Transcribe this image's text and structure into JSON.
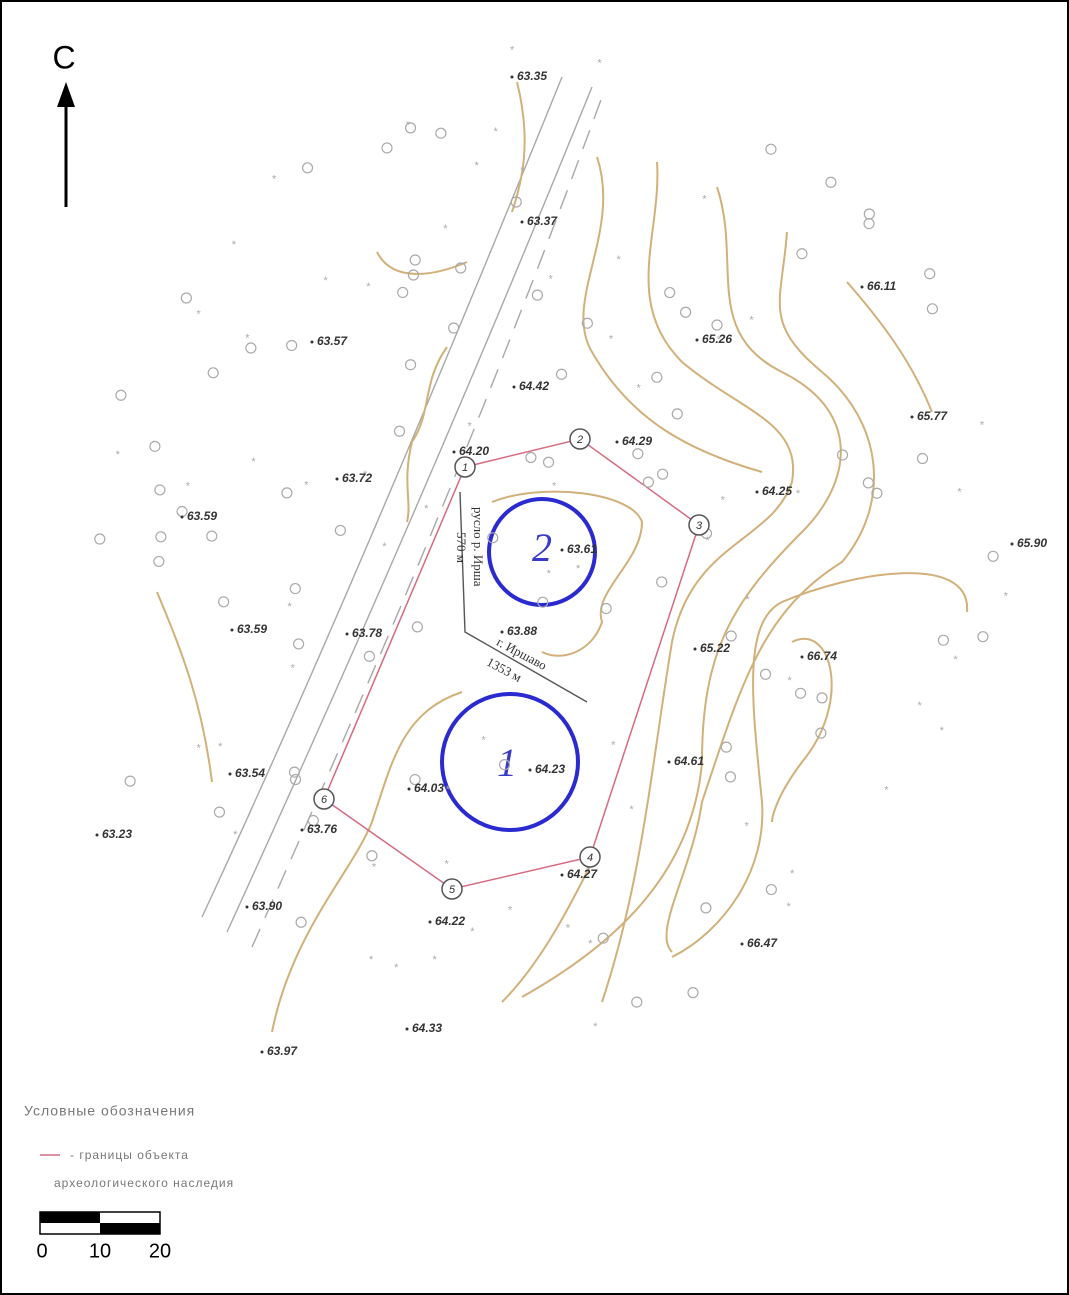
{
  "north_label": "С",
  "elevations": [
    "63.35",
    "63.37",
    "66.11",
    "63.57",
    "65.26",
    "64.42",
    "65.77",
    "64.20",
    "64.29",
    "63.72",
    "64.25",
    "63.59",
    "63.61",
    "65.90",
    "63.59",
    "63.78",
    "63.88",
    "65.22",
    "66.74",
    "64.61",
    "64.23",
    "63.54",
    "64.03",
    "63.76",
    "63.23",
    "64.27",
    "63.90",
    "64.22",
    "66.47",
    "64.33",
    "63.97"
  ],
  "boundary_points": [
    "1",
    "2",
    "3",
    "4",
    "5",
    "6"
  ],
  "objects": [
    "1",
    "2"
  ],
  "annotations": [
    "русло р. Ирша",
    "570 м",
    "г. Иршаво",
    "1353 м"
  ],
  "legend": {
    "title": "Условные обозначения",
    "item_line1": "- границы объекта",
    "item_line2": "археологического наследия"
  },
  "scale": [
    "0",
    "10",
    "20"
  ]
}
